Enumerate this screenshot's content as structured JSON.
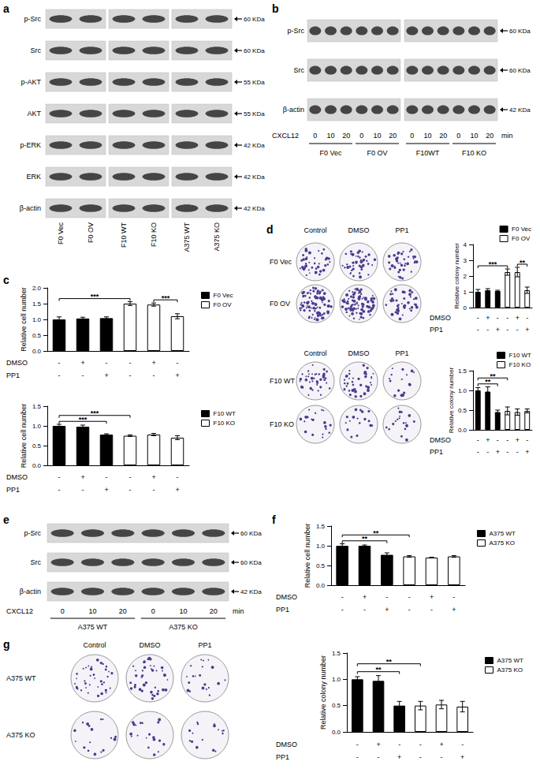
{
  "panel_letters": [
    "a",
    "b",
    "c",
    "d",
    "e",
    "f",
    "g"
  ],
  "blots": {
    "a": {
      "rows": [
        {
          "label": "p-Src",
          "size": "60 KDa"
        },
        {
          "label": "Src",
          "size": "60 KDa"
        },
        {
          "label": "p-AKT",
          "size": "55 KDa"
        },
        {
          "label": "AKT",
          "size": "55 KDa"
        },
        {
          "label": "p-ERK",
          "size": "42 KDa"
        },
        {
          "label": "ERK",
          "size": "42 KDa"
        },
        {
          "label": "β-actin",
          "size": "42 KDa"
        }
      ],
      "lanes": [
        "F0 Vec",
        "F0 OV",
        "F10 WT",
        "F10 KO",
        "A375 WT",
        "A375 KO"
      ]
    },
    "b": {
      "rows": [
        {
          "label": "p-Src",
          "size": "60 KDa"
        },
        {
          "label": "Src",
          "size": "60 KDa"
        },
        {
          "label": "β-actin",
          "size": "42 KDa"
        }
      ],
      "time_label": "CXCL12",
      "times": [
        0,
        10,
        20,
        0,
        10,
        20,
        0,
        10,
        20,
        0,
        10,
        20
      ],
      "time_unit": "min",
      "groups": [
        "F0 Vec",
        "F0 OV",
        "F10WT",
        "F10 KO"
      ]
    },
    "e": {
      "rows": [
        {
          "label": "p-Src",
          "size": "60 KDa"
        },
        {
          "label": "Src",
          "size": "60 KDa"
        },
        {
          "label": "β-actin",
          "size": "42 KDa"
        }
      ],
      "time_label": "CXCL12",
      "times": [
        0,
        10,
        20,
        0,
        10,
        20
      ],
      "time_unit": "min",
      "groups": [
        "A375 WT",
        "A375 KO"
      ]
    }
  },
  "chart_data": [
    {
      "panel": "c",
      "type": "bar",
      "y_label": "Relative cell number",
      "categories": [
        null,
        null,
        null,
        null,
        null,
        null
      ],
      "series": [
        {
          "name": "F0 Vec",
          "color": "#000000",
          "values": [
            1.0,
            1.03,
            1.04,
            null,
            null,
            null
          ],
          "errors": [
            0.08,
            0.04,
            0.04,
            null,
            null,
            null
          ]
        },
        {
          "name": "F0 OV",
          "color": "#ffffff",
          "values": [
            null,
            null,
            null,
            1.5,
            1.47,
            1.1
          ],
          "errors": [
            null,
            null,
            null,
            0.06,
            0.05,
            0.08
          ]
        }
      ],
      "ylim": [
        0,
        2
      ],
      "yticks": [
        {
          "value": 0,
          "label": "0.0"
        },
        {
          "value": 0.5,
          "label": "0.5"
        },
        {
          "value": 1,
          "label": "1.0"
        },
        {
          "value": 1.5,
          "label": "1.5"
        },
        {
          "value": 2,
          "label": "2.0"
        }
      ],
      "grid": false,
      "legend": "right",
      "treatments": [
        {
          "label": "DMSO",
          "signs": [
            "-",
            "+",
            "-",
            "-",
            "+",
            "-"
          ]
        },
        {
          "label": "PP1",
          "signs": [
            "-",
            "-",
            "+",
            "-",
            "-",
            "+"
          ]
        }
      ],
      "significance": [
        {
          "from": 0,
          "to": 3,
          "label": "***"
        },
        {
          "from": 4,
          "to": 5,
          "label": "***"
        }
      ]
    },
    {
      "panel": "c",
      "type": "bar",
      "y_label": "Relative cell number",
      "categories": [
        null,
        null,
        null,
        null,
        null,
        null
      ],
      "series": [
        {
          "name": "F10 WT",
          "color": "#000000",
          "values": [
            1.0,
            0.98,
            0.78,
            null,
            null,
            null
          ],
          "errors": [
            0.04,
            0.04,
            0.02,
            null,
            null,
            null
          ]
        },
        {
          "name": "F10 KO",
          "color": "#ffffff",
          "values": [
            null,
            null,
            null,
            0.75,
            0.78,
            0.7
          ],
          "errors": [
            null,
            null,
            null,
            0.02,
            0.03,
            0.05
          ]
        }
      ],
      "ylim": [
        0,
        1.5
      ],
      "yticks": [
        {
          "value": 0,
          "label": "0.0"
        },
        {
          "value": 0.5,
          "label": "0.5"
        },
        {
          "value": 1,
          "label": "1.0"
        },
        1.5
      ],
      "grid": false,
      "legend": "right",
      "treatments": [
        {
          "label": "DMSO",
          "signs": [
            "-",
            "+",
            "-",
            "-",
            "+",
            "-"
          ]
        },
        {
          "label": "PP1",
          "signs": [
            "-",
            "-",
            "+",
            "-",
            "-",
            "+"
          ]
        }
      ],
      "significance": [
        {
          "from": 0,
          "to": 2,
          "label": "***"
        },
        {
          "from": 0,
          "to": 3,
          "label": "***"
        }
      ]
    },
    {
      "panel": "d",
      "type": "bar",
      "y_label": "Relative colony number",
      "categories": [
        null,
        null,
        null,
        null,
        null,
        null
      ],
      "series": [
        {
          "name": "F0 Vec",
          "color": "#000000",
          "values": [
            1.0,
            1.1,
            1.05,
            null,
            null,
            null
          ],
          "errors": [
            0.15,
            0.1,
            0.05,
            null,
            null,
            null
          ]
        },
        {
          "name": "F0 OV",
          "color": "#ffffff",
          "values": [
            null,
            null,
            null,
            2.25,
            2.25,
            1.1
          ],
          "errors": [
            null,
            null,
            null,
            0.2,
            0.3,
            0.2
          ]
        }
      ],
      "ylim": [
        0,
        4
      ],
      "yticks": [
        0,
        1,
        2,
        3,
        4
      ],
      "grid": false,
      "legend": "right",
      "plate_columns": [
        "Control",
        "DMSO",
        "PP1"
      ],
      "treatments": [
        {
          "label": "DMSO",
          "signs": [
            "-",
            "+",
            "-",
            "-",
            "+",
            "-"
          ]
        },
        {
          "label": "PP1",
          "signs": [
            "-",
            "-",
            "+",
            "-",
            "-",
            "+"
          ]
        }
      ],
      "significance": [
        {
          "from": 0,
          "to": 3,
          "label": "***"
        },
        {
          "from": 4,
          "to": 5,
          "label": "**"
        }
      ]
    },
    {
      "panel": "d",
      "type": "bar",
      "y_label": "Relative colony number",
      "categories": [
        null,
        null,
        null,
        null,
        null,
        null
      ],
      "series": [
        {
          "name": "F10 WT",
          "color": "#000000",
          "values": [
            1.0,
            0.97,
            0.45,
            null,
            null,
            null
          ],
          "errors": [
            0.07,
            0.12,
            0.05,
            null,
            null,
            null
          ]
        },
        {
          "name": "F10 KO",
          "color": "#ffffff",
          "values": [
            null,
            null,
            null,
            0.48,
            0.45,
            0.48
          ],
          "errors": [
            null,
            null,
            null,
            0.1,
            0.08,
            0.05
          ]
        }
      ],
      "ylim": [
        0,
        1.5
      ],
      "yticks": [
        {
          "value": 0,
          "label": "0.0"
        },
        {
          "value": 0.5,
          "label": "0.5"
        },
        {
          "value": 1,
          "label": "1.0"
        },
        1.5
      ],
      "grid": false,
      "legend": "right",
      "plate_columns": [
        "Control",
        "DMSO",
        "PP1"
      ],
      "treatments": [
        {
          "label": "DMSO",
          "signs": [
            "-",
            "+",
            "-",
            "-",
            "+",
            "-"
          ]
        },
        {
          "label": "PP1",
          "signs": [
            "-",
            "-",
            "+",
            "-",
            "-",
            "+"
          ]
        }
      ],
      "significance": [
        {
          "from": 0,
          "to": 2,
          "label": "**"
        },
        {
          "from": 0,
          "to": 3,
          "label": "**"
        }
      ]
    },
    {
      "panel": "f",
      "type": "bar",
      "y_label": "Relative cell number",
      "categories": [
        null,
        null,
        null,
        null,
        null,
        null
      ],
      "series": [
        {
          "name": "A375 WT",
          "color": "#000000",
          "values": [
            1.0,
            1.0,
            0.77,
            null,
            null,
            null
          ],
          "errors": [
            0.05,
            0.02,
            0.05,
            null,
            null,
            null
          ]
        },
        {
          "name": "A375 KO",
          "color": "#ffffff",
          "values": [
            null,
            null,
            null,
            0.73,
            0.7,
            0.73
          ],
          "errors": [
            null,
            null,
            null,
            0.02,
            0.01,
            0.02
          ]
        }
      ],
      "ylim": [
        0,
        1.5
      ],
      "yticks": [
        {
          "value": 0,
          "label": "0.0"
        },
        {
          "value": 0.5,
          "label": "0.5"
        },
        {
          "value": 1,
          "label": "1.0"
        },
        1.5
      ],
      "grid": false,
      "legend": "right",
      "treatments": [
        {
          "label": "DMSO",
          "signs": [
            "-",
            "+",
            "-",
            "-",
            "+",
            "-"
          ]
        },
        {
          "label": "PP1",
          "signs": [
            "-",
            "-",
            "+",
            "-",
            "-",
            "+"
          ]
        }
      ],
      "significance": [
        {
          "from": 0,
          "to": 2,
          "label": "**"
        },
        {
          "from": 0,
          "to": 3,
          "label": "**"
        }
      ]
    },
    {
      "panel": "g",
      "type": "bar",
      "y_label": "Relative colony number",
      "categories": [
        null,
        null,
        null,
        null,
        null,
        null
      ],
      "series": [
        {
          "name": "A375 WT",
          "color": "#000000",
          "values": [
            1.0,
            0.97,
            0.5,
            null,
            null,
            null
          ],
          "errors": [
            0.05,
            0.1,
            0.08,
            null,
            null,
            null
          ]
        },
        {
          "name": "A375 KO",
          "color": "#ffffff",
          "values": [
            null,
            null,
            null,
            0.5,
            0.52,
            0.48
          ],
          "errors": [
            null,
            null,
            null,
            0.08,
            0.08,
            0.1
          ]
        }
      ],
      "ylim": [
        0,
        1.5
      ],
      "yticks": [
        {
          "value": 0,
          "label": "0.0"
        },
        {
          "value": 0.5,
          "label": "0.5"
        },
        {
          "value": 1,
          "label": "1.0"
        },
        1.5
      ],
      "grid": false,
      "legend": "right",
      "plate_columns": [
        "Control",
        "DMSO",
        "PP1"
      ],
      "treatments": [
        {
          "label": "DMSO",
          "signs": [
            "-",
            "+",
            "-",
            "-",
            "+",
            "-"
          ]
        },
        {
          "label": "PP1",
          "signs": [
            "-",
            "-",
            "+",
            "-",
            "-",
            "+"
          ]
        }
      ],
      "significance": [
        {
          "from": 0,
          "to": 2,
          "label": "**"
        },
        {
          "from": 0,
          "to": 3,
          "label": "**"
        }
      ]
    }
  ]
}
